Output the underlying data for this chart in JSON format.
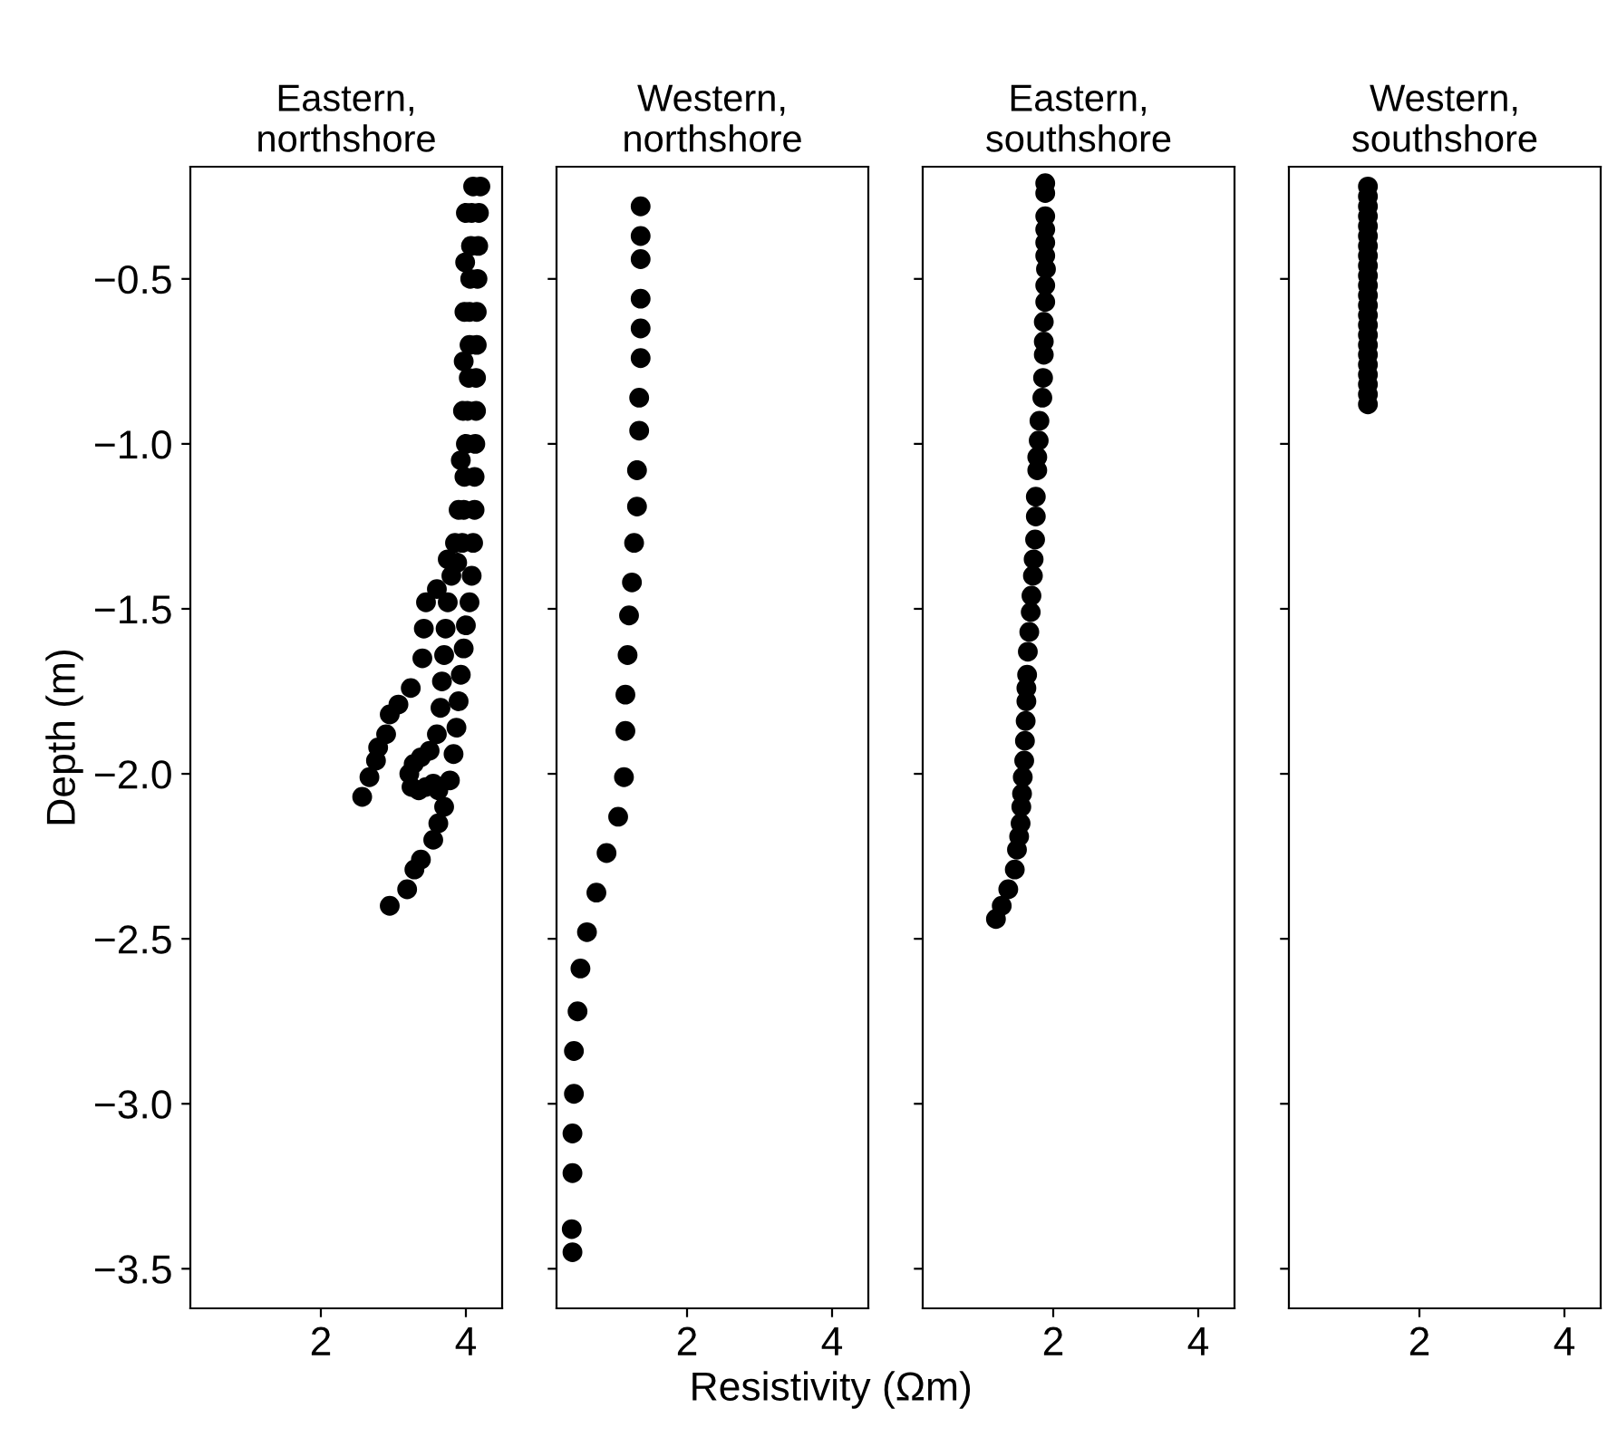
{
  "chart_data": [
    {
      "type": "scatter",
      "title": "Eastern,\nnorthshore",
      "ylabel": "Depth (m)",
      "xlim": [
        0.2,
        4.5
      ],
      "ylim": [
        -3.62,
        -0.16
      ],
      "xticks": [
        2,
        4
      ],
      "yticks": [
        {
          "value": -3.5,
          "label": "−3.5"
        },
        {
          "value": -3.0,
          "label": "−3.0"
        },
        {
          "value": -2.5,
          "label": "−2.5"
        },
        {
          "value": -2.0,
          "label": "−2.0"
        },
        {
          "value": -1.5,
          "label": "−1.5"
        },
        {
          "value": -1.0,
          "label": "−1.0"
        },
        {
          "value": -0.5,
          "label": "−0.5"
        }
      ],
      "marker": "circle",
      "grid": false,
      "series": [
        {
          "color": "#000000",
          "x": [
            4.2,
            4.18,
            4.17,
            4.16,
            4.15,
            4.15,
            4.14,
            4.14,
            4.13,
            4.12,
            4.12,
            4.1,
            4.08,
            4.05,
            4.0,
            3.97,
            3.93,
            3.9,
            3.87,
            3.83,
            3.78,
            3.7,
            3.62,
            3.55,
            3.38,
            3.29,
            3.19,
            2.95,
            4.1,
            4.08,
            4.07,
            4.06,
            4.05,
            4.05,
            4.04,
            4.02,
            4.0,
            3.98,
            3.97,
            3.95,
            3.88,
            3.8,
            3.75,
            3.72,
            3.7,
            3.67,
            3.65,
            3.6,
            3.5,
            3.38,
            3.28,
            3.22,
            3.25,
            3.35,
            3.45,
            3.55,
            3.62,
            4.0,
            3.99,
            3.98,
            3.97,
            3.96,
            3.93,
            3.9,
            3.85,
            3.75,
            3.6,
            3.45,
            3.42,
            3.4,
            3.24,
            3.07,
            2.95,
            2.9,
            2.79,
            2.76,
            2.67,
            2.57
          ],
          "values": [
            -0.22,
            -0.3,
            -0.4,
            -0.5,
            -0.6,
            -0.7,
            -0.8,
            -0.9,
            -1.0,
            -1.1,
            -1.2,
            -1.3,
            -1.4,
            -1.48,
            -1.55,
            -1.62,
            -1.7,
            -1.78,
            -1.86,
            -1.94,
            -2.02,
            -2.1,
            -2.15,
            -2.2,
            -2.26,
            -2.29,
            -2.35,
            -2.4,
            -0.22,
            -0.3,
            -0.4,
            -0.5,
            -0.6,
            -0.7,
            -0.8,
            -0.9,
            -1.0,
            -1.1,
            -1.2,
            -1.3,
            -1.36,
            -1.4,
            -1.48,
            -1.56,
            -1.64,
            -1.72,
            -1.8,
            -1.88,
            -1.93,
            -1.95,
            -1.97,
            -2.0,
            -2.04,
            -2.05,
            -2.04,
            -2.03,
            -2.05,
            -0.3,
            -0.45,
            -0.6,
            -0.75,
            -0.9,
            -1.05,
            -1.2,
            -1.3,
            -1.35,
            -1.44,
            -1.48,
            -1.56,
            -1.65,
            -1.74,
            -1.79,
            -1.82,
            -1.88,
            -1.92,
            -1.96,
            -2.01,
            -2.07
          ]
        }
      ]
    },
    {
      "type": "scatter",
      "title": "Western,\nnorthshore",
      "xlabel": "Resistivity (Ωm)",
      "xlim": [
        0.2,
        4.5
      ],
      "ylim": [
        -3.62,
        -0.16
      ],
      "xticks": [
        2,
        4
      ],
      "yticks": [
        -3.5,
        -3.0,
        -2.5,
        -2.0,
        -1.5,
        -1.0,
        -0.5
      ],
      "tick_labels": "x",
      "marker": "circle",
      "grid": false,
      "series": [
        {
          "color": "#000000",
          "x": [
            1.36,
            1.36,
            1.36,
            1.36,
            1.36,
            1.36,
            1.34,
            1.34,
            1.31,
            1.31,
            1.27,
            1.24,
            1.2,
            1.18,
            1.15,
            1.15,
            1.13,
            1.05,
            0.89,
            0.75,
            0.62,
            0.53,
            0.49,
            0.44,
            0.44,
            0.42,
            0.42,
            0.41,
            0.42
          ],
          "values": [
            -0.28,
            -0.37,
            -0.44,
            -0.56,
            -0.65,
            -0.74,
            -0.86,
            -0.96,
            -1.08,
            -1.19,
            -1.3,
            -1.42,
            -1.52,
            -1.64,
            -1.76,
            -1.87,
            -2.01,
            -2.13,
            -2.24,
            -2.36,
            -2.48,
            -2.59,
            -2.72,
            -2.84,
            -2.97,
            -3.09,
            -3.21,
            -3.38,
            -3.45
          ]
        }
      ]
    },
    {
      "type": "scatter",
      "title": "Eastern,\nsouthshore",
      "xlim": [
        0.2,
        4.5
      ],
      "ylim": [
        -3.62,
        -0.16
      ],
      "xticks": [
        2,
        4
      ],
      "yticks": [
        -3.5,
        -3.0,
        -2.5,
        -2.0,
        -1.5,
        -1.0,
        -0.5
      ],
      "tick_labels": "x",
      "marker": "circle",
      "grid": false,
      "series": [
        {
          "color": "#000000",
          "x": [
            1.89,
            1.89,
            1.89,
            1.89,
            1.89,
            1.89,
            1.9,
            1.89,
            1.89,
            1.87,
            1.87,
            1.87,
            1.86,
            1.85,
            1.81,
            1.8,
            1.78,
            1.78,
            1.76,
            1.76,
            1.75,
            1.73,
            1.72,
            1.7,
            1.69,
            1.67,
            1.65,
            1.64,
            1.63,
            1.63,
            1.62,
            1.61,
            1.6,
            1.58,
            1.57,
            1.56,
            1.55,
            1.53,
            1.5,
            1.47,
            1.38,
            1.29,
            1.21
          ],
          "values": [
            -0.21,
            -0.24,
            -0.31,
            -0.35,
            -0.39,
            -0.43,
            -0.47,
            -0.52,
            -0.57,
            -0.63,
            -0.69,
            -0.73,
            -0.8,
            -0.86,
            -0.93,
            -0.99,
            -1.04,
            -1.08,
            -1.16,
            -1.22,
            -1.29,
            -1.35,
            -1.4,
            -1.46,
            -1.51,
            -1.57,
            -1.63,
            -1.7,
            -1.74,
            -1.78,
            -1.84,
            -1.9,
            -1.96,
            -2.01,
            -2.06,
            -2.1,
            -2.15,
            -2.19,
            -2.23,
            -2.29,
            -2.35,
            -2.4,
            -2.44
          ]
        }
      ]
    },
    {
      "type": "scatter",
      "title": "Western,\nsouthshore",
      "xlim": [
        0.2,
        4.5
      ],
      "ylim": [
        -3.62,
        -0.16
      ],
      "xticks": [
        2,
        4
      ],
      "yticks": [
        -3.5,
        -3.0,
        -2.5,
        -2.0,
        -1.5,
        -1.0,
        -0.5
      ],
      "tick_labels": "x",
      "marker": "circle",
      "grid": false,
      "series": [
        {
          "color": "#000000",
          "x": [
            1.29,
            1.29,
            1.29,
            1.29,
            1.29,
            1.29,
            1.29,
            1.29,
            1.29,
            1.29,
            1.29,
            1.29,
            1.29,
            1.29,
            1.29,
            1.29,
            1.29,
            1.29,
            1.29,
            1.29,
            1.29,
            1.29,
            1.29
          ],
          "values": [
            -0.22,
            -0.25,
            -0.28,
            -0.31,
            -0.34,
            -0.37,
            -0.4,
            -0.43,
            -0.46,
            -0.49,
            -0.52,
            -0.55,
            -0.58,
            -0.61,
            -0.64,
            -0.67,
            -0.7,
            -0.73,
            -0.76,
            -0.79,
            -0.82,
            -0.85,
            -0.88
          ]
        }
      ]
    }
  ]
}
